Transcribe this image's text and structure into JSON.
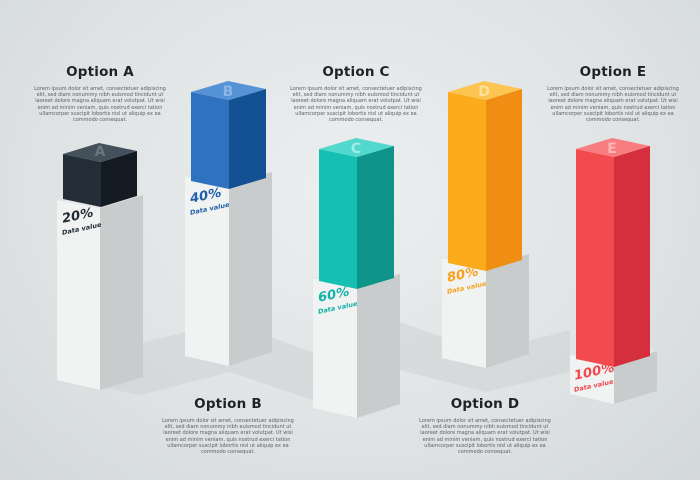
{
  "options": [
    {
      "id": "a",
      "title": "Option A",
      "letter": "A",
      "percent": "20%",
      "value_label": "Data value",
      "color": "#1f2a35",
      "desc": "Lorem ipsum dolor sit amet, consectetuer adipiscing elit, sed diam nonummy nibh euismod tincidunt ut laoreet dolore magna aliquam erat volutpat. Ut wisi enim ad minim veniam, quis nostrud exerci tation ullamcorper suscipit lobortis nisl ut aliquip ex ea commodo consequat."
    },
    {
      "id": "b",
      "title": "Option B",
      "letter": "B",
      "percent": "40%",
      "value_label": "Data value",
      "color": "#1e5fa8",
      "desc": "Lorem ipsum dolor sit amet, consectetuer adipiscing elit, sed diam nonummy nibh euismod tincidunt ut laoreet dolore magna aliquam erat volutpat. Ut wisi enim ad minim veniam, quis nostrud exerci tation ullamcorper suscipit lobortis nisl ut aliquip ex ea commodo consequat."
    },
    {
      "id": "c",
      "title": "Option C",
      "letter": "C",
      "percent": "60%",
      "value_label": "Data value",
      "color": "#12b3a8",
      "desc": "Lorem ipsum dolor sit amet, consectetuer adipiscing elit, sed diam nonummy nibh euismod tincidunt ut laoreet dolore magna aliquam erat volutpat. Ut wisi enim ad minim veniam, quis nostrud exerci tation ullamcorper suscipit lobortis nisl ut aliquip ex ea commodo consequat."
    },
    {
      "id": "d",
      "title": "Option D",
      "letter": "D",
      "percent": "80%",
      "value_label": "Data value",
      "color": "#f7a11a",
      "desc": "Lorem ipsum dolor sit amet, consectetuer adipiscing elit, sed diam nonummy nibh euismod tincidunt ut laoreet dolore magna aliquam erat volutpat. Ut wisi enim ad minim veniam, quis nostrud exerci tation ullamcorper suscipit lobortis nisl ut aliquip ex ea commodo consequat."
    },
    {
      "id": "e",
      "title": "Option E",
      "letter": "E",
      "percent": "100%",
      "value_label": "Data value",
      "color": "#f0484c",
      "desc": "Lorem ipsum dolor sit amet, consectetuer adipiscing elit, sed diam nonummy nibh euismod tincidunt ut laoreet dolore magna aliquam erat volutpat. Ut wisi enim ad minim veniam, quis nostrud exerci tation ullamcorper suscipit lobortis nisl ut aliquip ex ea commodo consequat."
    }
  ]
}
